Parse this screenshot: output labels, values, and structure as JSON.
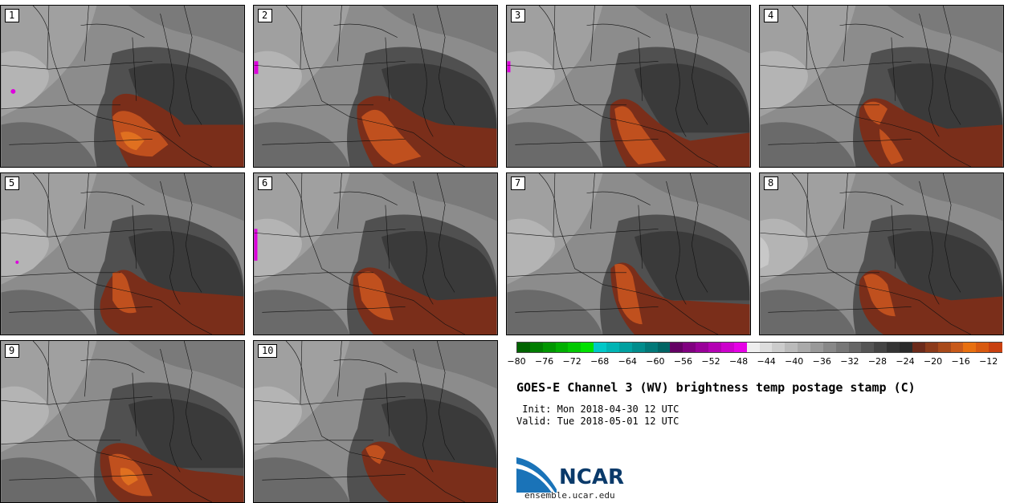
{
  "figure": {
    "title": "GOES-E Channel 3 (WV) brightness temp postage stamp (C)",
    "init_label": " Init:",
    "init_value": "Mon 2018-04-30 12 UTC",
    "valid_label": "Valid:",
    "valid_value": "Tue 2018-05-01 12 UTC"
  },
  "panels": [
    {
      "label": "1"
    },
    {
      "label": "2"
    },
    {
      "label": "3"
    },
    {
      "label": "4"
    },
    {
      "label": "5"
    },
    {
      "label": "6"
    },
    {
      "label": "7"
    },
    {
      "label": "8"
    },
    {
      "label": "9"
    },
    {
      "label": "10"
    }
  ],
  "colorbar": {
    "units": "C",
    "range": [
      -80,
      -10
    ],
    "tick_labels": [
      "−80",
      "−76",
      "−72",
      "−68",
      "−64",
      "−60",
      "−56",
      "−52",
      "−48",
      "−44",
      "−40",
      "−36",
      "−32",
      "−28",
      "−24",
      "−20",
      "−16",
      "−12"
    ],
    "tick_values": [
      -80,
      -76,
      -72,
      -68,
      -64,
      -60,
      -56,
      -52,
      -48,
      -44,
      -40,
      -36,
      -32,
      -28,
      -24,
      -20,
      -16,
      -12
    ],
    "colors": [
      "#006400",
      "#007d00",
      "#009600",
      "#00af00",
      "#00c800",
      "#00e100",
      "#00c8c8",
      "#00b4b4",
      "#00a0a0",
      "#008c8c",
      "#007878",
      "#006464",
      "#640064",
      "#800080",
      "#990099",
      "#b300b3",
      "#cc00cc",
      "#e600e6",
      "#eeeeee",
      "#dddddd",
      "#cccccc",
      "#bbbbbb",
      "#aaaaaa",
      "#999999",
      "#888888",
      "#777777",
      "#666666",
      "#555555",
      "#444444",
      "#333333",
      "#2a2a2a",
      "#6b2a1a",
      "#8b3a1a",
      "#a84a1a",
      "#c85a1a",
      "#e87010",
      "#d85a10",
      "#c84010"
    ]
  },
  "logo": {
    "text": "NCAR",
    "url": "ensemble.ucar.edu"
  }
}
